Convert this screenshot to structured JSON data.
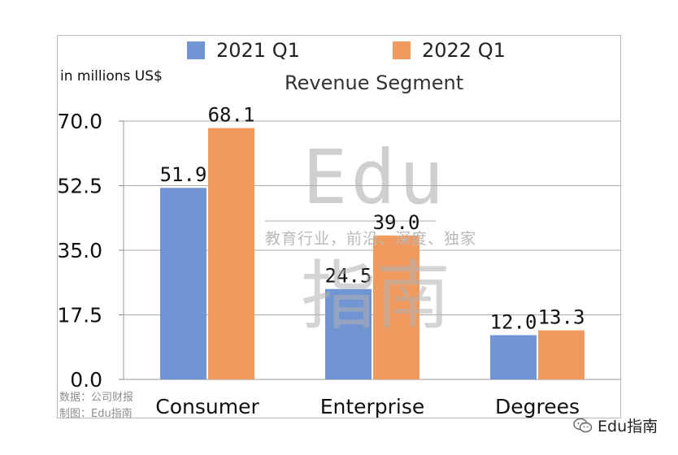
{
  "legend": [
    {
      "label": "2021 Q1",
      "color": "#7195d3"
    },
    {
      "label": "2022 Q1",
      "color": "#f09a5f"
    }
  ],
  "unit_label": "in millions US$",
  "watermark": {
    "text_en": "Edu",
    "text_cn": "教育行业，前沿、深度、独家",
    "text_big": "指南"
  },
  "source": {
    "line1": "数据：公司财报",
    "line2": "制图：Edu指南"
  },
  "wechat_label": "Edu指南",
  "wechat_icon": "wechat-icon",
  "chart_data": {
    "type": "bar",
    "title": "Revenue Segment",
    "categories": [
      "Consumer",
      "Enterprise",
      "Degrees"
    ],
    "series": [
      {
        "name": "2021 Q1",
        "values": [
          51.9,
          24.5,
          12.0
        ],
        "color": "#7195d3"
      },
      {
        "name": "2022 Q1",
        "values": [
          68.1,
          39.0,
          13.3
        ],
        "color": "#f09a5f"
      }
    ],
    "yticks": [
      "0.0",
      "17.5",
      "35.0",
      "52.5",
      "70.0"
    ],
    "ylim": [
      0,
      70
    ],
    "xlabel": "",
    "ylabel": "in millions US$",
    "grid": true,
    "legend_position": "top"
  }
}
